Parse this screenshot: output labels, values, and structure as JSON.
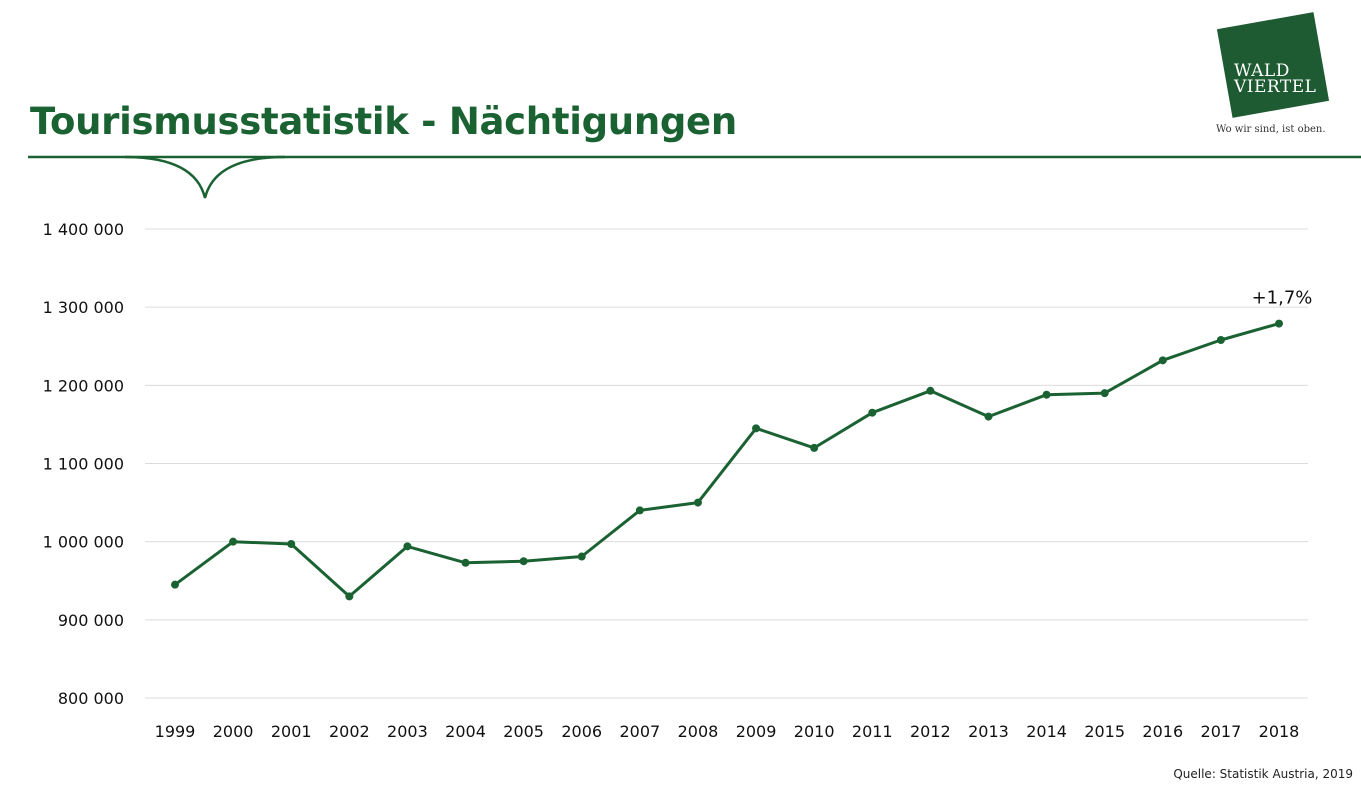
{
  "header": {
    "title": "Tourismusstatistik - Nächtigungen"
  },
  "logo": {
    "line1": "WALD",
    "line2": "VIERTEL",
    "tagline": "Wo wir sind, ist oben.",
    "brand_color": "#1e5b33"
  },
  "footer": {
    "source": "Quelle: Statistik Austria, 2019"
  },
  "colors": {
    "accent": "#1b6233",
    "series": "#1b6233",
    "grid": "#dcdcdc"
  },
  "chart_data": {
    "type": "line",
    "title": "Tourismusstatistik - Nächtigungen",
    "xlabel": "",
    "ylabel": "",
    "categories": [
      "1999",
      "2000",
      "2001",
      "2002",
      "2003",
      "2004",
      "2005",
      "2006",
      "2007",
      "2008",
      "2009",
      "2010",
      "2011",
      "2012",
      "2013",
      "2014",
      "2015",
      "2016",
      "2017",
      "2018"
    ],
    "series": [
      {
        "values": [
          945000,
          1000000,
          997000,
          930000,
          994000,
          973000,
          975000,
          981000,
          1040000,
          1050000,
          1145000,
          1120000,
          1165000,
          1193000,
          1160000,
          1188000,
          1190000,
          1232000,
          1258000,
          1279000
        ]
      }
    ],
    "ylim": [
      800000,
      1400000
    ],
    "yticks": [
      800000,
      900000,
      1000000,
      1100000,
      1200000,
      1300000,
      1400000
    ],
    "ytick_labels": [
      "800 000",
      "900 000",
      "1 000 000",
      "1 100 000",
      "1 200 000",
      "1 300 000",
      "1 400 000"
    ],
    "grid": true,
    "legend": "none",
    "annotations": [
      {
        "text": "+1,7%",
        "category": "2018"
      }
    ]
  }
}
